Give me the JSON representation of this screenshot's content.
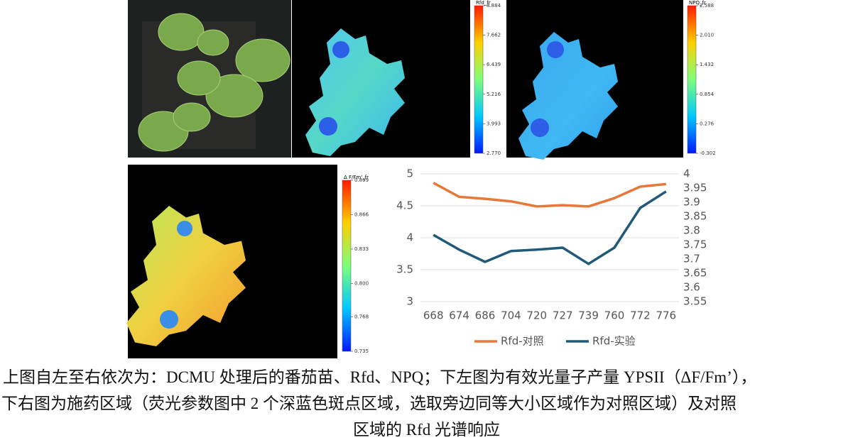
{
  "chart_data": {
    "type": "line",
    "categories": [
      "668",
      "674",
      "686",
      "704",
      "720",
      "727",
      "739",
      "760",
      "772",
      "776"
    ],
    "series": [
      {
        "name": "Rfd-对照",
        "color": "#e8773a",
        "values": [
          4.86,
          4.64,
          4.61,
          4.57,
          4.49,
          4.51,
          4.49,
          4.62,
          4.8,
          4.84
        ]
      },
      {
        "name": "Rfd-实验",
        "color": "#1f5a7a",
        "axis": "y2",
        "values": [
          3.785,
          3.733,
          3.69,
          3.728,
          3.733,
          3.74,
          3.683,
          3.74,
          3.88,
          3.938
        ]
      }
    ],
    "ylim": [
      3,
      5
    ],
    "yticks": [
      3,
      3.5,
      4,
      4.5,
      5
    ],
    "y2lim": [
      3.55,
      4
    ],
    "y2ticks": [
      3.55,
      3.6,
      3.65,
      3.7,
      3.75,
      3.8,
      3.85,
      3.9,
      3.95,
      4
    ],
    "grid": true,
    "legend": "bottom"
  },
  "colorbars": [
    {
      "title": "Rfd_fr",
      "lim": [
        2.77,
        8.884
      ],
      "ticks": [
        8.884,
        7.662,
        6.439,
        5.216,
        3.993,
        {
          "value": 2.77,
          "label": "2.770"
        }
      ]
    },
    {
      "title": "NPQ_fr",
      "lim": [
        -0.302,
        2.588
      ],
      "ticks": [
        2.588,
        {
          "value": 2.01,
          "label": "2.010"
        },
        1.432,
        0.854,
        0.276,
        -0.302
      ]
    },
    {
      "title": "Δ F/Fm'_fr",
      "lim": [
        0.735,
        0.899
      ],
      "ticks": [
        0.899,
        0.866,
        0.833,
        {
          "value": 0.8,
          "label": "0.800"
        },
        0.768,
        0.735
      ]
    }
  ],
  "caption": [
    "上图自左至右依次为：DCMU 处理后的番茄苗、Rfd、NPQ；下左图为有效光量子产量 YPSII（ΔF/Fm’），",
    "下右图为施药区域（荧光参数图中 2 个深蓝色斑点区域，选取旁边同等大小区域作为对照区域）及对照",
    "区域的 Rfd 光谱响应"
  ]
}
